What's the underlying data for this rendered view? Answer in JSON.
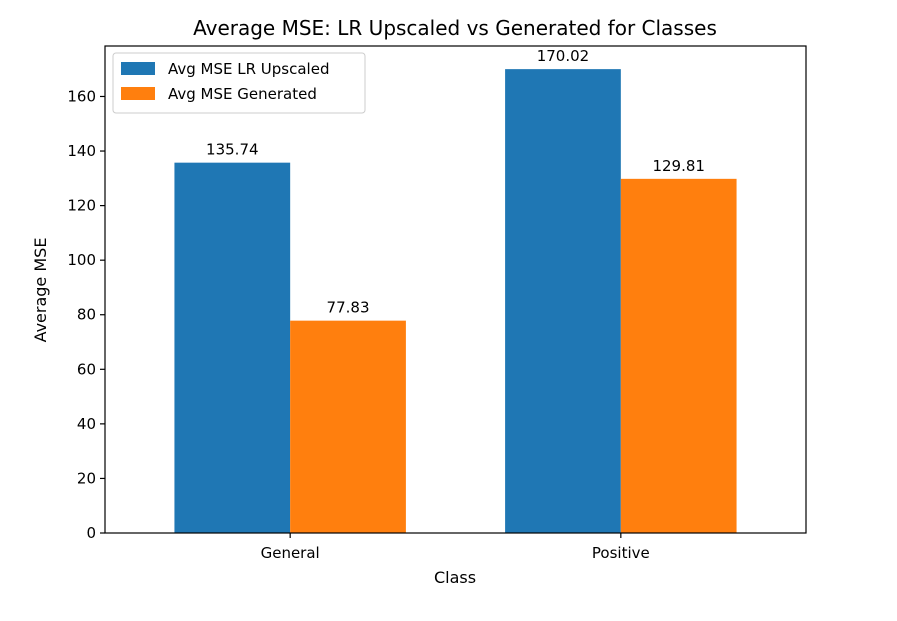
{
  "chart_data": {
    "type": "bar",
    "title": "Average MSE: LR Upscaled vs Generated for Classes",
    "xlabel": "Class",
    "ylabel": "Average MSE",
    "categories": [
      "General",
      "Positive"
    ],
    "series": [
      {
        "name": "Avg MSE LR Upscaled",
        "color": "#1f77b4",
        "values": [
          135.74,
          170.02
        ],
        "labels": [
          "135.74",
          "170.02"
        ]
      },
      {
        "name": "Avg MSE Generated",
        "color": "#ff7f0e",
        "values": [
          77.83,
          129.81
        ],
        "labels": [
          "77.83",
          "129.81"
        ]
      }
    ],
    "ylim": [
      0,
      178.5
    ],
    "yticks": [
      0,
      20,
      40,
      60,
      80,
      100,
      120,
      140,
      160
    ],
    "grid": false,
    "legend_position": "top-left"
  }
}
